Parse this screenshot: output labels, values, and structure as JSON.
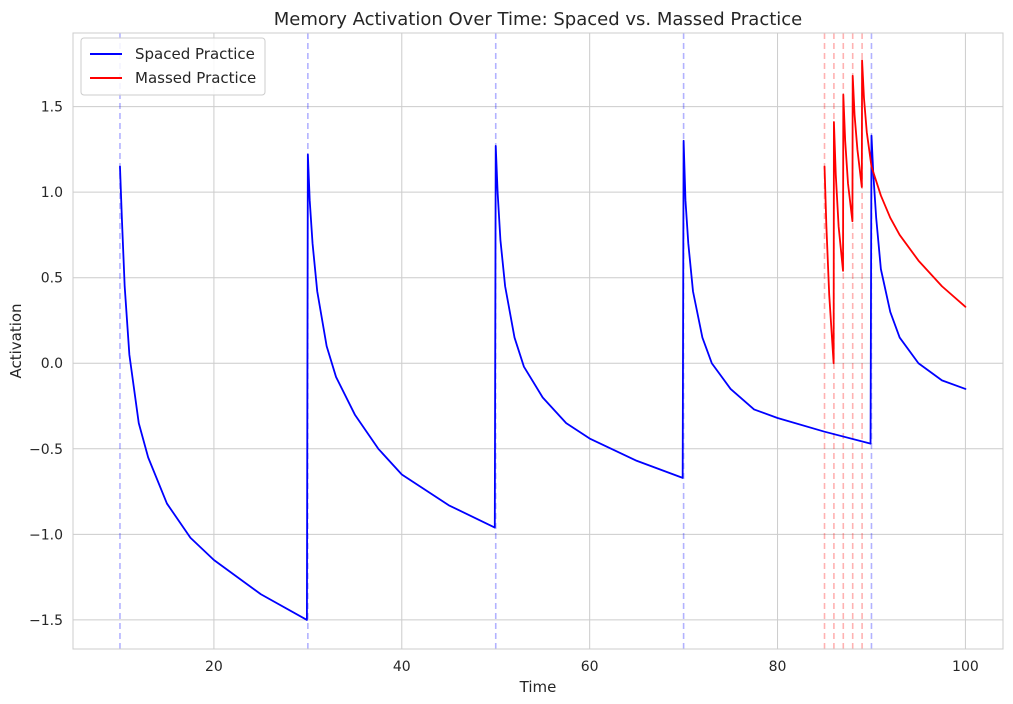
{
  "chart_data": {
    "type": "line",
    "title": "Memory Activation Over Time: Spaced vs. Massed Practice",
    "xlabel": "Time",
    "ylabel": "Activation",
    "xlim": [
      5,
      104
    ],
    "ylim": [
      -1.67,
      1.93
    ],
    "xticks": [
      20,
      40,
      60,
      80,
      100
    ],
    "yticks": [
      -1.5,
      -1.0,
      -0.5,
      0.0,
      0.5,
      1.0,
      1.5
    ],
    "grid": true,
    "legend": "top-left",
    "series": [
      {
        "name": "Spaced Practice",
        "color": "#0000ff",
        "practice_times": [
          10,
          30,
          50,
          70,
          90
        ],
        "peaks": [
          1.15,
          1.22,
          1.27,
          1.3,
          1.33
        ],
        "x": [
          10,
          10.2,
          10.5,
          11,
          12,
          13,
          15,
          17.5,
          20,
          25,
          29.9,
          30,
          30.2,
          30.5,
          31,
          32,
          33,
          35,
          37.5,
          40,
          45,
          49.9,
          50,
          50.2,
          50.5,
          51,
          52,
          53,
          55,
          57.5,
          60,
          65,
          69.9,
          70,
          70.2,
          70.5,
          71,
          72,
          73,
          75,
          77.5,
          80,
          85,
          89.9,
          90,
          90.2,
          90.5,
          91,
          92,
          93,
          95,
          97.5,
          100
        ],
        "y": [
          1.15,
          0.85,
          0.45,
          0.05,
          -0.35,
          -0.55,
          -0.82,
          -1.02,
          -1.15,
          -1.35,
          -1.5,
          1.22,
          0.95,
          0.7,
          0.42,
          0.1,
          -0.08,
          -0.3,
          -0.5,
          -0.65,
          -0.83,
          -0.96,
          1.27,
          1.0,
          0.72,
          0.45,
          0.15,
          -0.02,
          -0.2,
          -0.35,
          -0.44,
          -0.57,
          -0.67,
          1.3,
          0.95,
          0.7,
          0.42,
          0.15,
          0.0,
          -0.15,
          -0.27,
          -0.32,
          -0.4,
          -0.47,
          1.33,
          1.1,
          0.85,
          0.55,
          0.3,
          0.15,
          0.0,
          -0.1,
          -0.15
        ]
      },
      {
        "name": "Massed Practice",
        "color": "#ff0000",
        "practice_times": [
          85,
          86,
          87,
          88,
          89
        ],
        "peaks": [
          1.15,
          1.41,
          1.57,
          1.68,
          1.77
        ],
        "x": [
          85,
          85.2,
          85.5,
          85.97,
          86,
          86.2,
          86.5,
          86.97,
          87,
          87.2,
          87.5,
          87.97,
          88,
          88.2,
          88.5,
          88.97,
          89,
          89.2,
          89.5,
          90,
          91,
          92,
          93,
          95,
          97.5,
          100
        ],
        "y": [
          1.15,
          0.8,
          0.4,
          0.0,
          1.41,
          1.1,
          0.8,
          0.54,
          1.57,
          1.3,
          1.05,
          0.83,
          1.68,
          1.45,
          1.25,
          1.03,
          1.77,
          1.55,
          1.35,
          1.15,
          0.98,
          0.85,
          0.75,
          0.6,
          0.45,
          0.33
        ]
      }
    ]
  }
}
